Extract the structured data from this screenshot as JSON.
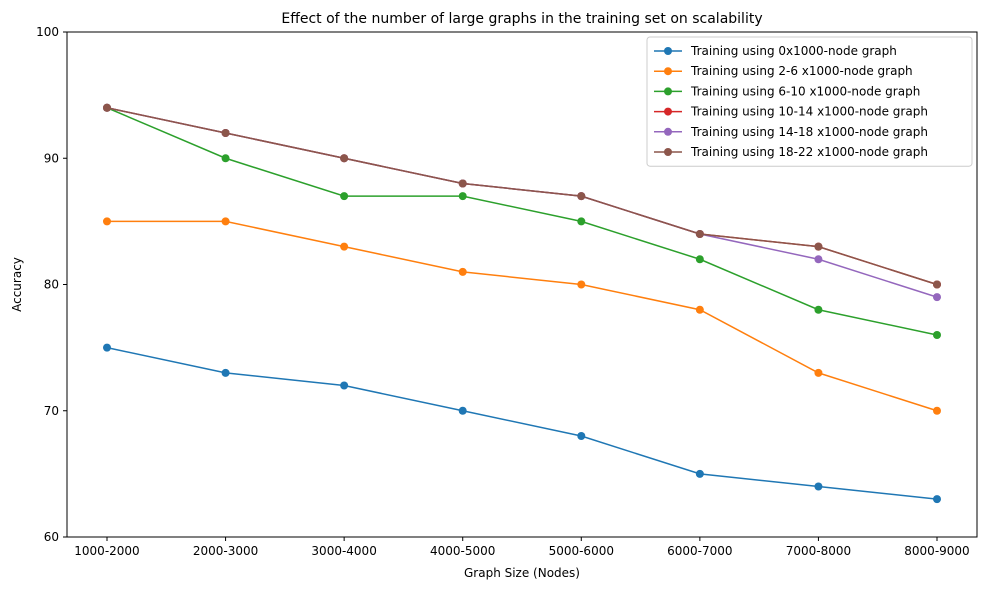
{
  "chart_data": {
    "type": "line",
    "title": "Effect of the number of large graphs in the training set on scalability",
    "xlabel": "Graph Size (Nodes)",
    "ylabel": "Accuracy",
    "categories": [
      "1000-2000",
      "2000-3000",
      "3000-4000",
      "4000-5000",
      "5000-6000",
      "6000-7000",
      "7000-8000",
      "8000-9000"
    ],
    "ylim": [
      60,
      100
    ],
    "yticks": [
      60,
      70,
      80,
      90,
      100
    ],
    "grid": false,
    "legend_position": "top-right",
    "series": [
      {
        "name": "Training using 0x1000-node graph",
        "color": "#1f77b4",
        "values": [
          75,
          73,
          72,
          70,
          68,
          65,
          64,
          63
        ]
      },
      {
        "name": "Training using 2-6 x1000-node graph",
        "color": "#ff7f0e",
        "values": [
          85,
          85,
          83,
          81,
          80,
          78,
          73,
          70
        ]
      },
      {
        "name": "Training using 6-10 x1000-node graph",
        "color": "#2ca02c",
        "values": [
          94,
          90,
          87,
          87,
          85,
          82,
          78,
          76
        ]
      },
      {
        "name": "Training using 10-14 x1000-node graph",
        "color": "#d62728",
        "values": [
          94,
          92,
          90,
          88,
          87,
          84,
          83,
          80
        ]
      },
      {
        "name": "Training using 14-18 x1000-node graph",
        "color": "#9467bd",
        "values": [
          94,
          92,
          90,
          88,
          87,
          84,
          82,
          79
        ]
      },
      {
        "name": "Training using 18-22 x1000-node graph",
        "color": "#8c564b",
        "values": [
          94,
          92,
          90,
          88,
          87,
          84,
          83,
          80
        ]
      }
    ]
  }
}
